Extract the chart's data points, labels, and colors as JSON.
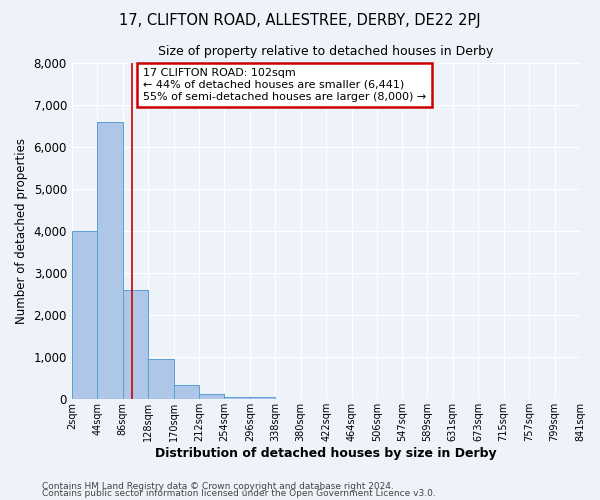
{
  "title": "17, CLIFTON ROAD, ALLESTREE, DERBY, DE22 2PJ",
  "subtitle": "Size of property relative to detached houses in Derby",
  "xlabel": "Distribution of detached houses by size in Derby",
  "ylabel": "Number of detached properties",
  "bin_edges": [
    2,
    44,
    86,
    128,
    170,
    212,
    254,
    296,
    338,
    380,
    422,
    464,
    506,
    547,
    589,
    631,
    673,
    715,
    757,
    799,
    841
  ],
  "bin_labels": [
    "2sqm",
    "44sqm",
    "86sqm",
    "128sqm",
    "170sqm",
    "212sqm",
    "254sqm",
    "296sqm",
    "338sqm",
    "380sqm",
    "422sqm",
    "464sqm",
    "506sqm",
    "547sqm",
    "589sqm",
    "631sqm",
    "673sqm",
    "715sqm",
    "757sqm",
    "799sqm",
    "841sqm"
  ],
  "bar_heights": [
    4000,
    6600,
    2600,
    960,
    330,
    120,
    60,
    55,
    0,
    0,
    0,
    0,
    0,
    0,
    0,
    0,
    0,
    0,
    0,
    0
  ],
  "bar_color": "#aec6e8",
  "bar_edge_color": "#5a9fd4",
  "red_line_x": 102,
  "annotation_title": "17 CLIFTON ROAD: 102sqm",
  "annotation_line1": "← 44% of detached houses are smaller (6,441)",
  "annotation_line2": "55% of semi-detached houses are larger (8,000) →",
  "annotation_box_color": "#ffffff",
  "annotation_box_edge": "#cc0000",
  "red_line_color": "#cc0000",
  "ylim": [
    0,
    8000
  ],
  "background_color": "#eef2f9",
  "grid_color": "#ffffff",
  "footer1": "Contains HM Land Registry data © Crown copyright and database right 2024.",
  "footer2": "Contains public sector information licensed under the Open Government Licence v3.0."
}
